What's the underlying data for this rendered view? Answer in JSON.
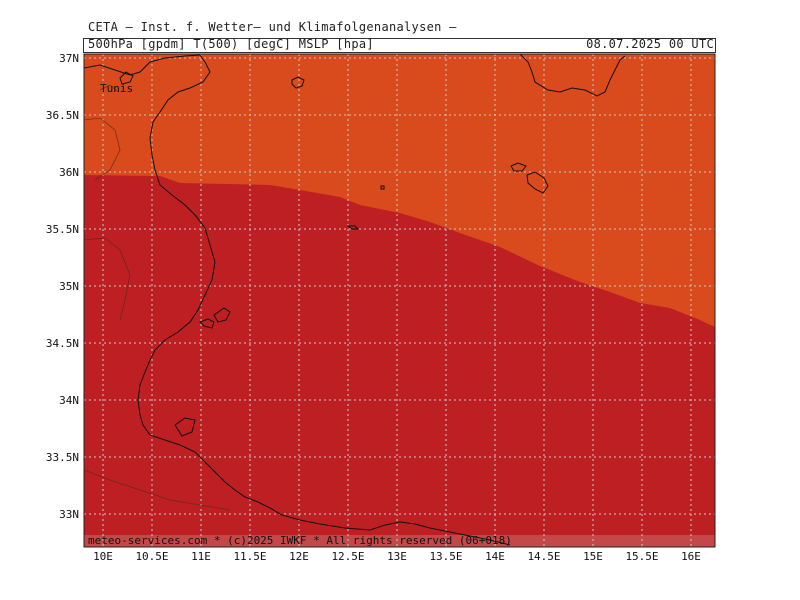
{
  "header": {
    "title": "CETA – Inst. f. Wetter– und Klimafolgenanalysen –",
    "parameters": "500hPa [gpdm] T(500) [degC] MSLP [hpa]",
    "valid_time": "08.07.2025 00 UTC"
  },
  "map": {
    "place_label": "Tunis",
    "footer": "meteo-services.com * (c)2025 IWKF * All rights reserved (06+018)",
    "lat_labels": [
      "37N",
      "36.5N",
      "36N",
      "35.5N",
      "35N",
      "34.5N",
      "34N",
      "33.5N",
      "33N"
    ],
    "lon_labels": [
      "10E",
      "10.5E",
      "11E",
      "11.5E",
      "12E",
      "12.5E",
      "13E",
      "13.5E",
      "14E",
      "14.5E",
      "15E",
      "15.5E",
      "16E"
    ],
    "colors": {
      "warm_region": "#d94b1c",
      "hot_region": "#be1f22",
      "grid": "#c9c9c9",
      "coast": "#111111"
    }
  }
}
